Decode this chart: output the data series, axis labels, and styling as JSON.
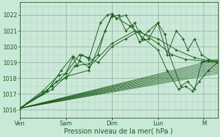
{
  "bg_color": "#c8e8d8",
  "plot_bg_color": "#cce8d8",
  "grid_major_color": "#99bbaa",
  "grid_minor_color": "#aaccbb",
  "line_color": "#1a5c1a",
  "ylim": [
    1015.5,
    1022.8
  ],
  "xlim": [
    0,
    4.3
  ],
  "xlabel": "Pression niveau de la mer( hPa )",
  "day_labels": [
    "Ven",
    "Sam",
    "Dim",
    "Lun",
    "M"
  ],
  "day_positions": [
    0,
    1,
    2,
    3,
    4
  ],
  "ylabel_ticks": [
    1016,
    1017,
    1018,
    1019,
    1020,
    1021,
    1022
  ],
  "tick_fontsize": 6,
  "label_fontsize": 7
}
